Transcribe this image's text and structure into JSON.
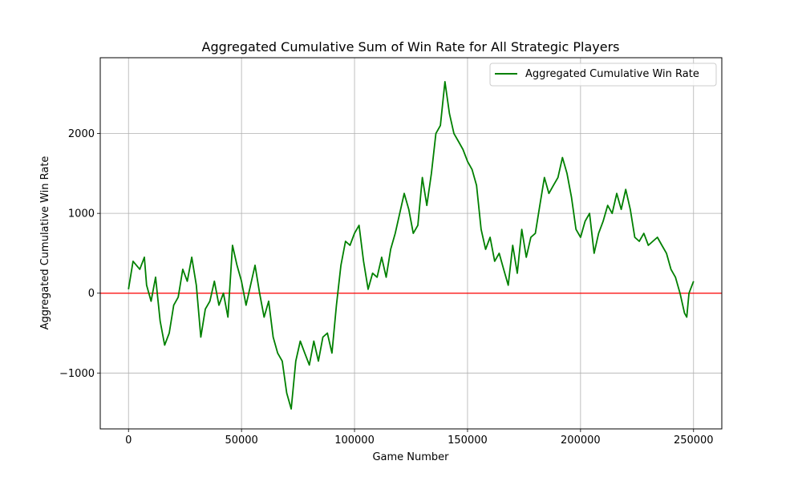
{
  "chart_data": {
    "type": "line",
    "title": "Aggregated Cumulative Sum of Win Rate for All Strategic Players",
    "xlabel": "Game Number",
    "ylabel": "Aggregated Cumulative Win Rate",
    "xlim": [
      -12500,
      262500
    ],
    "ylim": [
      -1700,
      2950
    ],
    "xticks": [
      0,
      50000,
      100000,
      150000,
      200000,
      250000
    ],
    "xtick_labels": [
      "0",
      "50000",
      "100000",
      "150000",
      "200000",
      "250000"
    ],
    "yticks": [
      -1000,
      0,
      1000,
      2000
    ],
    "ytick_labels": [
      "−1000",
      "0",
      "1000",
      "2000"
    ],
    "grid": true,
    "legend_position": "upper right",
    "reference_line": {
      "y": 0,
      "color": "#ff0000"
    },
    "series": [
      {
        "name": "Aggregated Cumulative Win Rate",
        "color": "#008000",
        "x": [
          0,
          2000,
          5000,
          7000,
          8000,
          10000,
          12000,
          14000,
          16000,
          18000,
          20000,
          22000,
          24000,
          26000,
          28000,
          30000,
          32000,
          34000,
          36000,
          38000,
          40000,
          42000,
          44000,
          46000,
          48000,
          50000,
          52000,
          54000,
          56000,
          58000,
          60000,
          62000,
          64000,
          66000,
          68000,
          70000,
          72000,
          74000,
          76000,
          78000,
          80000,
          82000,
          84000,
          86000,
          88000,
          90000,
          92000,
          94000,
          96000,
          98000,
          100000,
          102000,
          104000,
          106000,
          108000,
          110000,
          112000,
          114000,
          116000,
          118000,
          120000,
          122000,
          124000,
          126000,
          128000,
          130000,
          132000,
          134000,
          136000,
          138000,
          140000,
          142000,
          144000,
          146000,
          148000,
          150000,
          152000,
          154000,
          156000,
          158000,
          160000,
          162000,
          164000,
          166000,
          168000,
          170000,
          172000,
          174000,
          176000,
          178000,
          180000,
          182000,
          184000,
          186000,
          188000,
          190000,
          192000,
          194000,
          196000,
          198000,
          200000,
          202000,
          204000,
          206000,
          208000,
          210000,
          212000,
          214000,
          216000,
          218000,
          220000,
          222000,
          224000,
          226000,
          228000,
          230000,
          232000,
          234000,
          236000,
          238000,
          240000,
          242000,
          244000,
          246000,
          247000,
          248000,
          250000
        ],
        "y": [
          50,
          400,
          300,
          450,
          100,
          -100,
          200,
          -350,
          -650,
          -500,
          -150,
          -50,
          300,
          150,
          450,
          100,
          -550,
          -200,
          -100,
          150,
          -150,
          0,
          -300,
          600,
          350,
          150,
          -150,
          100,
          350,
          0,
          -300,
          -100,
          -550,
          -750,
          -850,
          -1250,
          -1450,
          -850,
          -600,
          -750,
          -900,
          -600,
          -850,
          -550,
          -500,
          -750,
          -150,
          350,
          650,
          600,
          750,
          850,
          400,
          50,
          250,
          200,
          450,
          200,
          550,
          750,
          1000,
          1250,
          1050,
          750,
          850,
          1450,
          1100,
          1500,
          2000,
          2100,
          2650,
          2250,
          2000,
          1900,
          1800,
          1650,
          1550,
          1350,
          800,
          550,
          700,
          400,
          500,
          300,
          100,
          600,
          250,
          800,
          450,
          700,
          750,
          1100,
          1450,
          1250,
          1350,
          1450,
          1700,
          1500,
          1200,
          800,
          700,
          900,
          1000,
          500,
          750,
          900,
          1100,
          1000,
          1250,
          1050,
          1300,
          1050,
          700,
          650,
          750,
          600,
          650,
          700,
          600,
          500,
          300,
          200,
          0,
          -250,
          -300,
          0,
          150
        ]
      }
    ]
  }
}
